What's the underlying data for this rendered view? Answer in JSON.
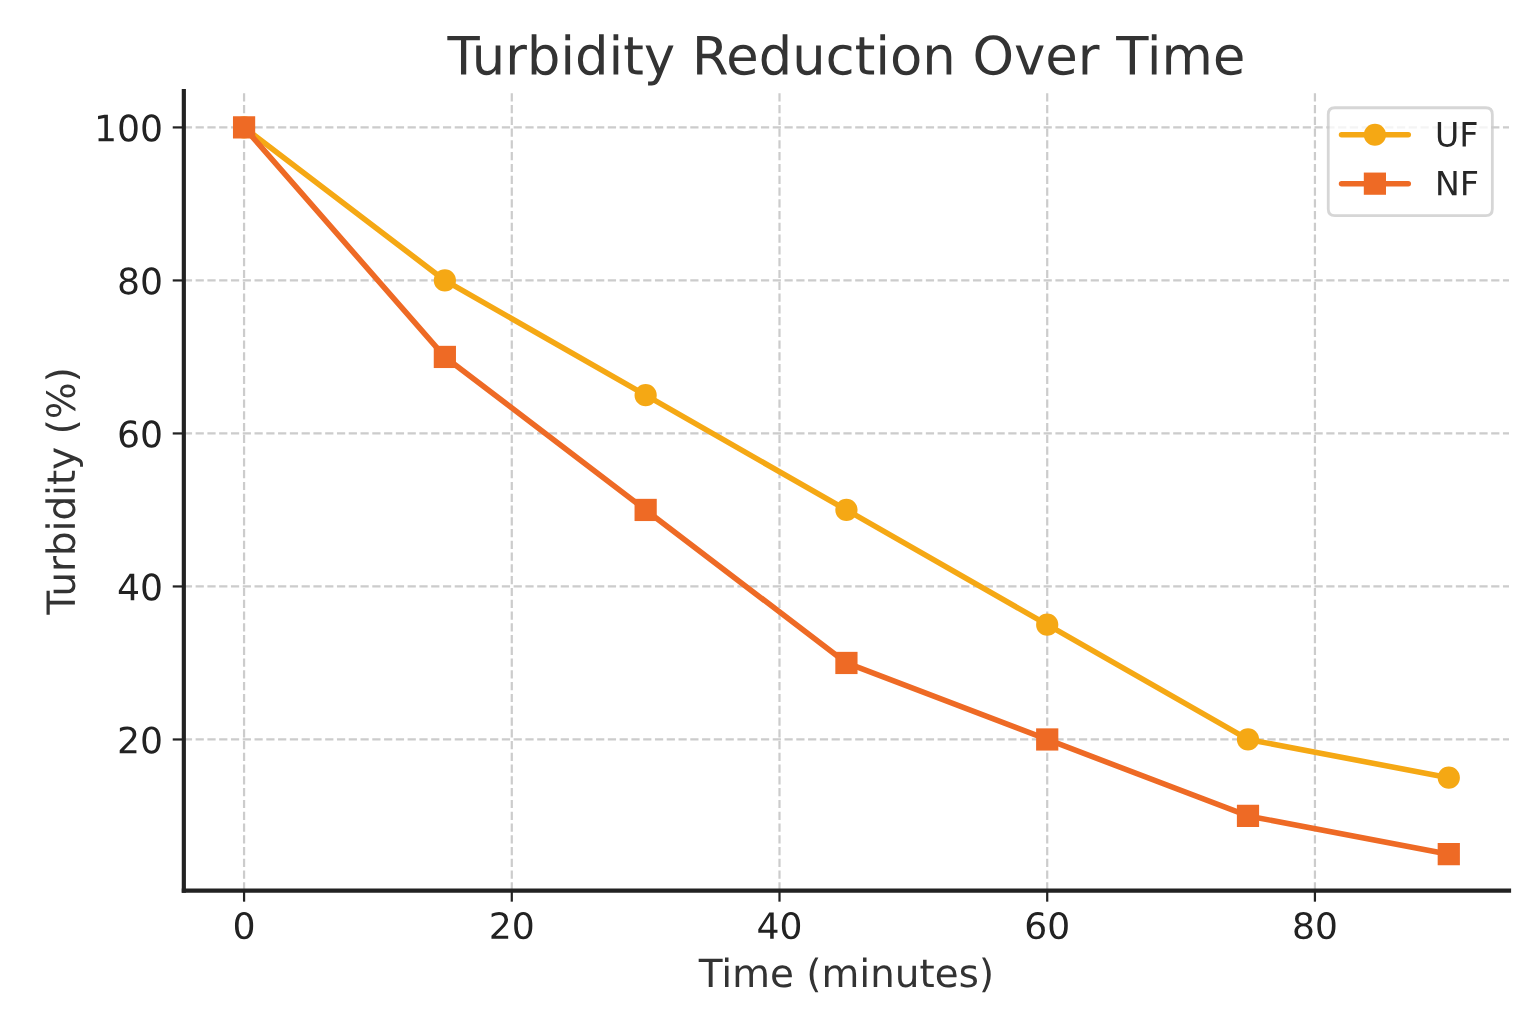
{
  "chart_data": {
    "type": "line",
    "title": "Turbidity Reduction Over Time",
    "xlabel": "Time (minutes)",
    "ylabel": "Turbidity (%)",
    "x": [
      0,
      15,
      30,
      45,
      60,
      75,
      90
    ],
    "series": [
      {
        "name": "UF",
        "color": "#f5a814",
        "values": [
          100,
          80,
          65,
          50,
          35,
          20,
          15
        ],
        "marker": "circle"
      },
      {
        "name": "NF",
        "color": "#ee6a25",
        "values": [
          100,
          70,
          50,
          30,
          20,
          10,
          5
        ],
        "marker": "square"
      }
    ],
    "xlim": [
      -4.5,
      94.5
    ],
    "ylim": [
      0.25,
      104.75
    ],
    "xticks": [
      0,
      20,
      40,
      60,
      80
    ],
    "yticks": [
      20,
      40,
      60,
      80,
      100
    ],
    "grid": true,
    "legend": "top right",
    "line_style": "solid"
  }
}
